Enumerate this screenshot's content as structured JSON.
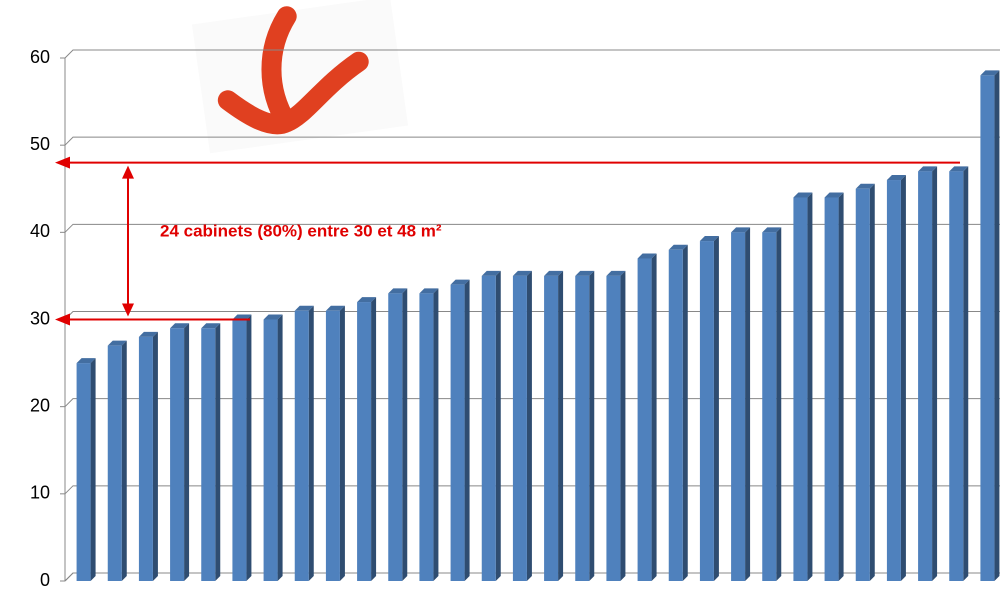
{
  "chart_data": {
    "type": "bar",
    "categories": [
      null,
      null,
      null,
      null,
      null,
      null,
      null,
      null,
      null,
      null,
      null,
      null,
      null,
      null,
      null,
      null,
      null,
      null,
      null,
      null,
      null,
      null,
      null,
      null,
      null,
      null,
      null,
      null,
      null,
      null
    ],
    "values": [
      25,
      27,
      28,
      29,
      29,
      30,
      30,
      31,
      31,
      32,
      33,
      33,
      34,
      35,
      35,
      35,
      35,
      35,
      37,
      38,
      39,
      40,
      40,
      44,
      44,
      45,
      46,
      47,
      47,
      58
    ],
    "color": "#4f81bd",
    "ylim": [
      0,
      60
    ],
    "yticks": [
      0,
      10,
      20,
      30,
      40,
      50,
      60
    ],
    "grid": true,
    "annotation": "24 cabinets (80%) entre 30 et 48 m²",
    "reference_lines": [
      30,
      48
    ],
    "reference_color": "#e00000"
  }
}
